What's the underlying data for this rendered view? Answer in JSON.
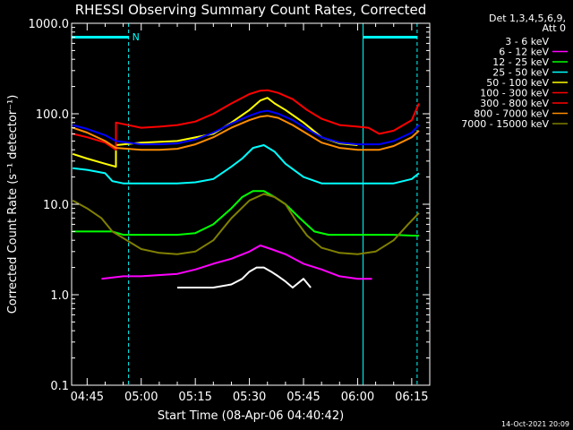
{
  "chart_data": {
    "type": "line",
    "title": "RHESSI Observing Summary Count Rates, Corrected",
    "xlabel": "Start Time (08-Apr-06 04:40:42)",
    "ylabel": "Corrected Count Rate (s⁻¹ detector⁻¹)",
    "y_scale": "log",
    "ylim": [
      0.1,
      1000
    ],
    "xlim": [
      "04:40:42",
      "06:20:00"
    ],
    "x_tick_labels": [
      "04:45",
      "05:00",
      "05:15",
      "05:30",
      "05:45",
      "06:00",
      "06:15"
    ],
    "y_tick_labels": [
      "0.1",
      "1.0",
      "10.0",
      "100.0",
      "1000.0"
    ],
    "grid": false,
    "legend_position": "right",
    "legend_header": [
      "Det 1,3,4,5,6,9,",
      "Att 0"
    ],
    "footer_stamp": "14-Oct-2021 20:09",
    "annotations": [
      {
        "type": "night-bar",
        "label": "N",
        "x_start": "04:40:42",
        "x_end": "04:56:30",
        "color": "#00ffff"
      },
      {
        "type": "night-bar",
        "x_start": "06:01:30",
        "x_end": "06:16:30",
        "color": "#00ffff"
      },
      {
        "type": "vline-solid",
        "x": "04:40:42",
        "color": "#00ffff"
      },
      {
        "type": "vline-dashed",
        "x": "04:56:30",
        "color": "#00ffff"
      },
      {
        "type": "vline-solid",
        "x": "06:01:30",
        "color": "#00ffff"
      },
      {
        "type": "vline-dashed",
        "x": "06:16:30",
        "color": "#00ffff"
      }
    ],
    "series": [
      {
        "name": "3 - 6 keV",
        "color": "#ffffff",
        "legend_color": "#000000",
        "x": [
          "05:10",
          "05:20",
          "05:25",
          "05:28",
          "05:30",
          "05:32",
          "05:34",
          "05:36",
          "05:38",
          "05:40",
          "05:42",
          "05:45",
          "05:47"
        ],
        "y": [
          1.2,
          1.2,
          1.3,
          1.5,
          1.8,
          2.0,
          2.0,
          1.8,
          1.6,
          1.4,
          1.2,
          1.5,
          1.2
        ]
      },
      {
        "name": "6 - 12 keV",
        "color": "#ff00ff",
        "x": [
          "04:49",
          "04:55",
          "05:00",
          "05:10",
          "05:15",
          "05:20",
          "05:25",
          "05:30",
          "05:33",
          "05:36",
          "05:40",
          "05:45",
          "05:50",
          "05:55",
          "06:00",
          "06:04"
        ],
        "y": [
          1.5,
          1.6,
          1.6,
          1.7,
          1.9,
          2.2,
          2.5,
          3.0,
          3.5,
          3.2,
          2.8,
          2.2,
          1.9,
          1.6,
          1.5,
          1.5
        ]
      },
      {
        "name": "12 - 25 keV",
        "color": "#00ff00",
        "x": [
          "04:41",
          "04:47",
          "04:52",
          "04:55",
          "05:00",
          "05:05",
          "05:10",
          "05:15",
          "05:20",
          "05:25",
          "05:28",
          "05:31",
          "05:34",
          "05:37",
          "05:40",
          "05:44",
          "05:48",
          "05:52",
          "05:55",
          "06:00",
          "06:05",
          "06:10",
          "06:15",
          "06:17"
        ],
        "y": [
          5,
          5,
          5,
          4.6,
          4.6,
          4.6,
          4.6,
          4.8,
          6,
          9,
          12,
          14,
          14,
          12,
          10,
          7,
          5,
          4.6,
          4.6,
          4.6,
          4.6,
          4.6,
          4.5,
          4.5
        ]
      },
      {
        "name": "25 - 50 keV",
        "color": "#00ffff",
        "x": [
          "04:41",
          "04:45",
          "04:50",
          "04:52",
          "04:55",
          "05:00",
          "05:05",
          "05:10",
          "05:15",
          "05:20",
          "05:25",
          "05:28",
          "05:31",
          "05:34",
          "05:37",
          "05:40",
          "05:45",
          "05:50",
          "05:55",
          "06:00",
          "06:05",
          "06:10",
          "06:15",
          "06:17"
        ],
        "y": [
          25,
          24,
          22,
          18,
          17,
          17,
          17,
          17,
          17.5,
          19,
          26,
          32,
          42,
          45,
          38,
          28,
          20,
          17,
          17,
          17,
          17,
          17,
          19,
          22
        ]
      },
      {
        "name": "50 - 100 keV",
        "color": "#ffff00",
        "x": [
          "04:41",
          "04:45",
          "04:50",
          "04:53",
          "04:53",
          "05:00",
          "05:10",
          "05:20",
          "05:25",
          "05:30",
          "05:33",
          "05:35",
          "05:37",
          "05:40",
          "05:45",
          "05:50",
          "05:55",
          "06:00"
        ],
        "y": [
          36,
          32,
          28,
          26,
          45,
          48,
          50,
          60,
          80,
          110,
          140,
          150,
          130,
          110,
          80,
          55,
          47,
          45
        ]
      },
      {
        "name": "100 - 300 keV",
        "color": "#ff0000",
        "x": [
          "04:41",
          "04:45",
          "04:50",
          "04:53",
          "04:53",
          "05:00",
          "05:05",
          "05:10",
          "05:15",
          "05:20",
          "05:25",
          "05:30",
          "05:33",
          "05:35",
          "05:38",
          "05:42",
          "05:46",
          "05:50",
          "05:55",
          "06:00",
          "06:03",
          "06:06",
          "06:10",
          "06:15",
          "06:17"
        ],
        "y": [
          60,
          55,
          48,
          40,
          80,
          70,
          72,
          75,
          82,
          100,
          130,
          165,
          180,
          182,
          170,
          145,
          110,
          88,
          75,
          72,
          70,
          60,
          65,
          85,
          130
        ]
      },
      {
        "name": "300 - 800 keV",
        "color": "#0000ff",
        "legend_color": "#ff0000",
        "x": [
          "04:41",
          "04:45",
          "04:50",
          "04:53",
          "04:53",
          "05:00",
          "05:05",
          "05:10",
          "05:15",
          "05:20",
          "05:25",
          "05:30",
          "05:33",
          "05:35",
          "05:38",
          "05:42",
          "05:46",
          "05:50",
          "05:55",
          "06:00",
          "06:03",
          "06:06",
          "06:10",
          "06:15",
          "06:17"
        ],
        "y": [
          75,
          68,
          58,
          50,
          50,
          46,
          46,
          47,
          52,
          62,
          78,
          95,
          105,
          108,
          100,
          85,
          68,
          55,
          48,
          46,
          46,
          46,
          50,
          62,
          75
        ]
      },
      {
        "name": "800 - 7000 keV",
        "color": "#ff8c00",
        "x": [
          "04:41",
          "04:45",
          "04:50",
          "04:53",
          "04:53",
          "05:00",
          "05:05",
          "05:10",
          "05:15",
          "05:20",
          "05:25",
          "05:30",
          "05:33",
          "05:35",
          "05:38",
          "05:42",
          "05:46",
          "05:50",
          "05:55",
          "06:00",
          "06:03",
          "06:06",
          "06:10",
          "06:15",
          "06:17"
        ],
        "y": [
          70,
          62,
          50,
          42,
          42,
          40,
          40,
          41,
          46,
          55,
          70,
          85,
          93,
          95,
          90,
          75,
          60,
          48,
          42,
          40,
          40,
          40,
          44,
          55,
          65
        ]
      },
      {
        "name": "7000 - 15000 keV",
        "color": "#808000",
        "x": [
          "04:41",
          "04:45",
          "04:49",
          "04:52",
          "04:56",
          "05:00",
          "05:05",
          "05:10",
          "05:15",
          "05:20",
          "05:25",
          "05:30",
          "05:34",
          "05:37",
          "05:40",
          "05:43",
          "05:46",
          "05:50",
          "05:55",
          "06:00",
          "06:05",
          "06:10",
          "06:14",
          "06:17"
        ],
        "y": [
          11,
          9,
          7,
          5,
          4,
          3.2,
          2.9,
          2.8,
          3.0,
          4.0,
          7.0,
          11,
          13,
          12,
          10,
          6.5,
          4.5,
          3.3,
          2.9,
          2.8,
          3.0,
          4.0,
          6.0,
          8.0
        ]
      }
    ]
  }
}
